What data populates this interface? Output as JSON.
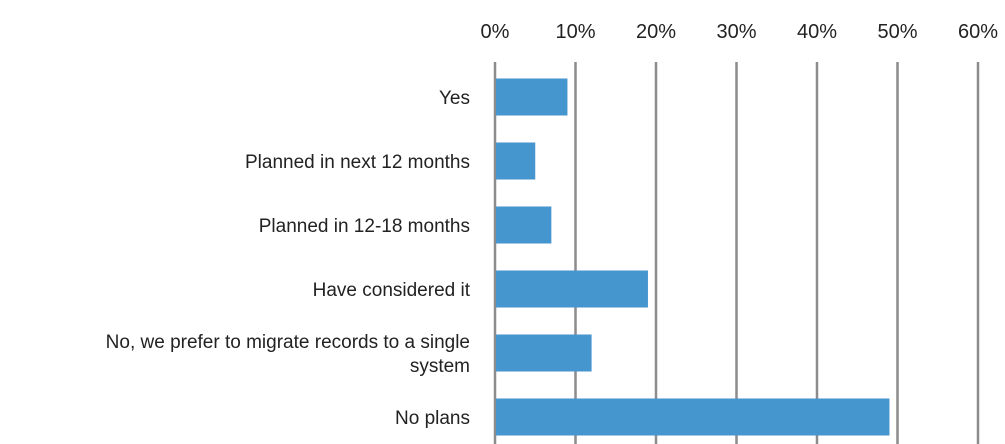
{
  "chart_data": {
    "type": "bar",
    "orientation": "horizontal",
    "categories": [
      "Yes",
      "Planned in next 12 months",
      "Planned in 12-18 months",
      "Have considered it",
      "No, we prefer to migrate records to a single system",
      "No plans"
    ],
    "category_lines": [
      [
        "Yes"
      ],
      [
        "Planned in next 12 months"
      ],
      [
        "Planned in 12-18 months"
      ],
      [
        "Have considered it"
      ],
      [
        "No, we prefer to migrate records to a single",
        "system"
      ],
      [
        "No plans"
      ]
    ],
    "values": [
      9,
      5,
      7,
      19,
      12,
      49
    ],
    "xlim": [
      0,
      60
    ],
    "xticks": [
      0,
      10,
      20,
      30,
      40,
      50,
      60
    ],
    "xtick_labels": [
      "0%",
      "10%",
      "20%",
      "30%",
      "40%",
      "50%",
      "60%"
    ],
    "title": "",
    "xlabel": "",
    "ylabel": "",
    "grid": "vertical",
    "x_axis_position": "top",
    "legend": "none",
    "bar_color": "#4595cf",
    "grid_color": "#8c8c8c"
  }
}
